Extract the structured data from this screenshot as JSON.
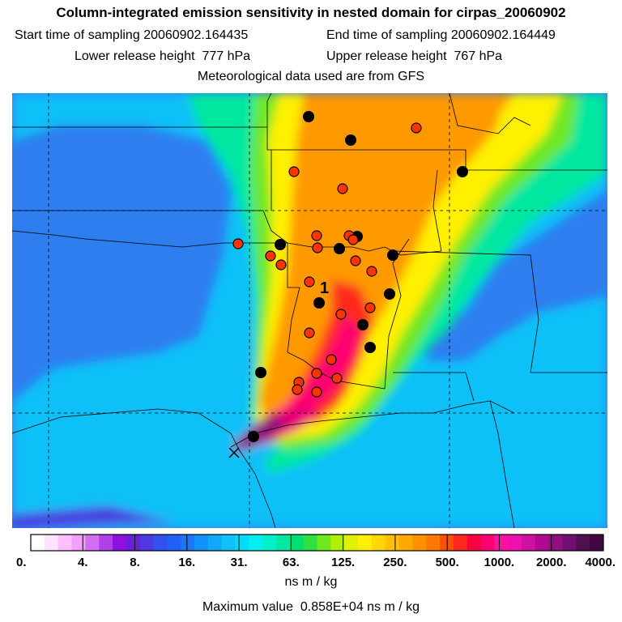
{
  "header": {
    "title": "Column-integrated emission sensitivity in nested domain for cirpas_20060902",
    "start_label": "Start time of sampling",
    "start_value": "20060902.164435",
    "end_label": "End time of sampling",
    "end_value": "20060902.164449",
    "lower_label": "Lower release height",
    "lower_value": "777 hPa",
    "upper_label": "Upper release height",
    "upper_value": "767 hPa",
    "met_note": "Meteorological data used are from GFS"
  },
  "map": {
    "release_label": "1",
    "release_marker": "x-cross-icon",
    "colors": {
      "background_ocean": "#2f7ef0",
      "cyan": "#00f0f0",
      "green": "#00e070",
      "yellow": "#f0e000",
      "orange": "#ff9900",
      "red": "#ff2a1f",
      "magenta": "#e8007a",
      "dark": "#4a0a4a",
      "black_dot": "#000000",
      "red_dot": "#ff3300"
    }
  },
  "colorbar": {
    "tick_labels": [
      "0.",
      "4.",
      "8.",
      "16.",
      "31.",
      "63.",
      "125.",
      "250.",
      "500.",
      "1000.",
      "2000.",
      "4000."
    ],
    "colors": [
      "#ffffff",
      "#ffe4ff",
      "#ffc0ff",
      "#f0a0f8",
      "#d070f0",
      "#b040e8",
      "#9010e0",
      "#6a20d8",
      "#4a3ae0",
      "#3050f0",
      "#2060f8",
      "#1a78f8",
      "#1090f8",
      "#10a8f8",
      "#10c0f8",
      "#00dcf8",
      "#00f0f0",
      "#00f0c8",
      "#00e8a0",
      "#00e070",
      "#30e040",
      "#70e820",
      "#b0f000",
      "#e0f000",
      "#fff000",
      "#ffd800",
      "#ffc000",
      "#ffa800",
      "#ff9000",
      "#ff7800",
      "#ff5000",
      "#ff2a1f",
      "#ff0040",
      "#ff0070",
      "#ff10a0",
      "#f010b0",
      "#d010a0",
      "#b00a90",
      "#901080",
      "#701070",
      "#501050",
      "#400840"
    ],
    "unit": "ns m / kg"
  },
  "footer": {
    "max_label": "Maximum value",
    "max_value": "0.858E+04 ns m / kg"
  }
}
